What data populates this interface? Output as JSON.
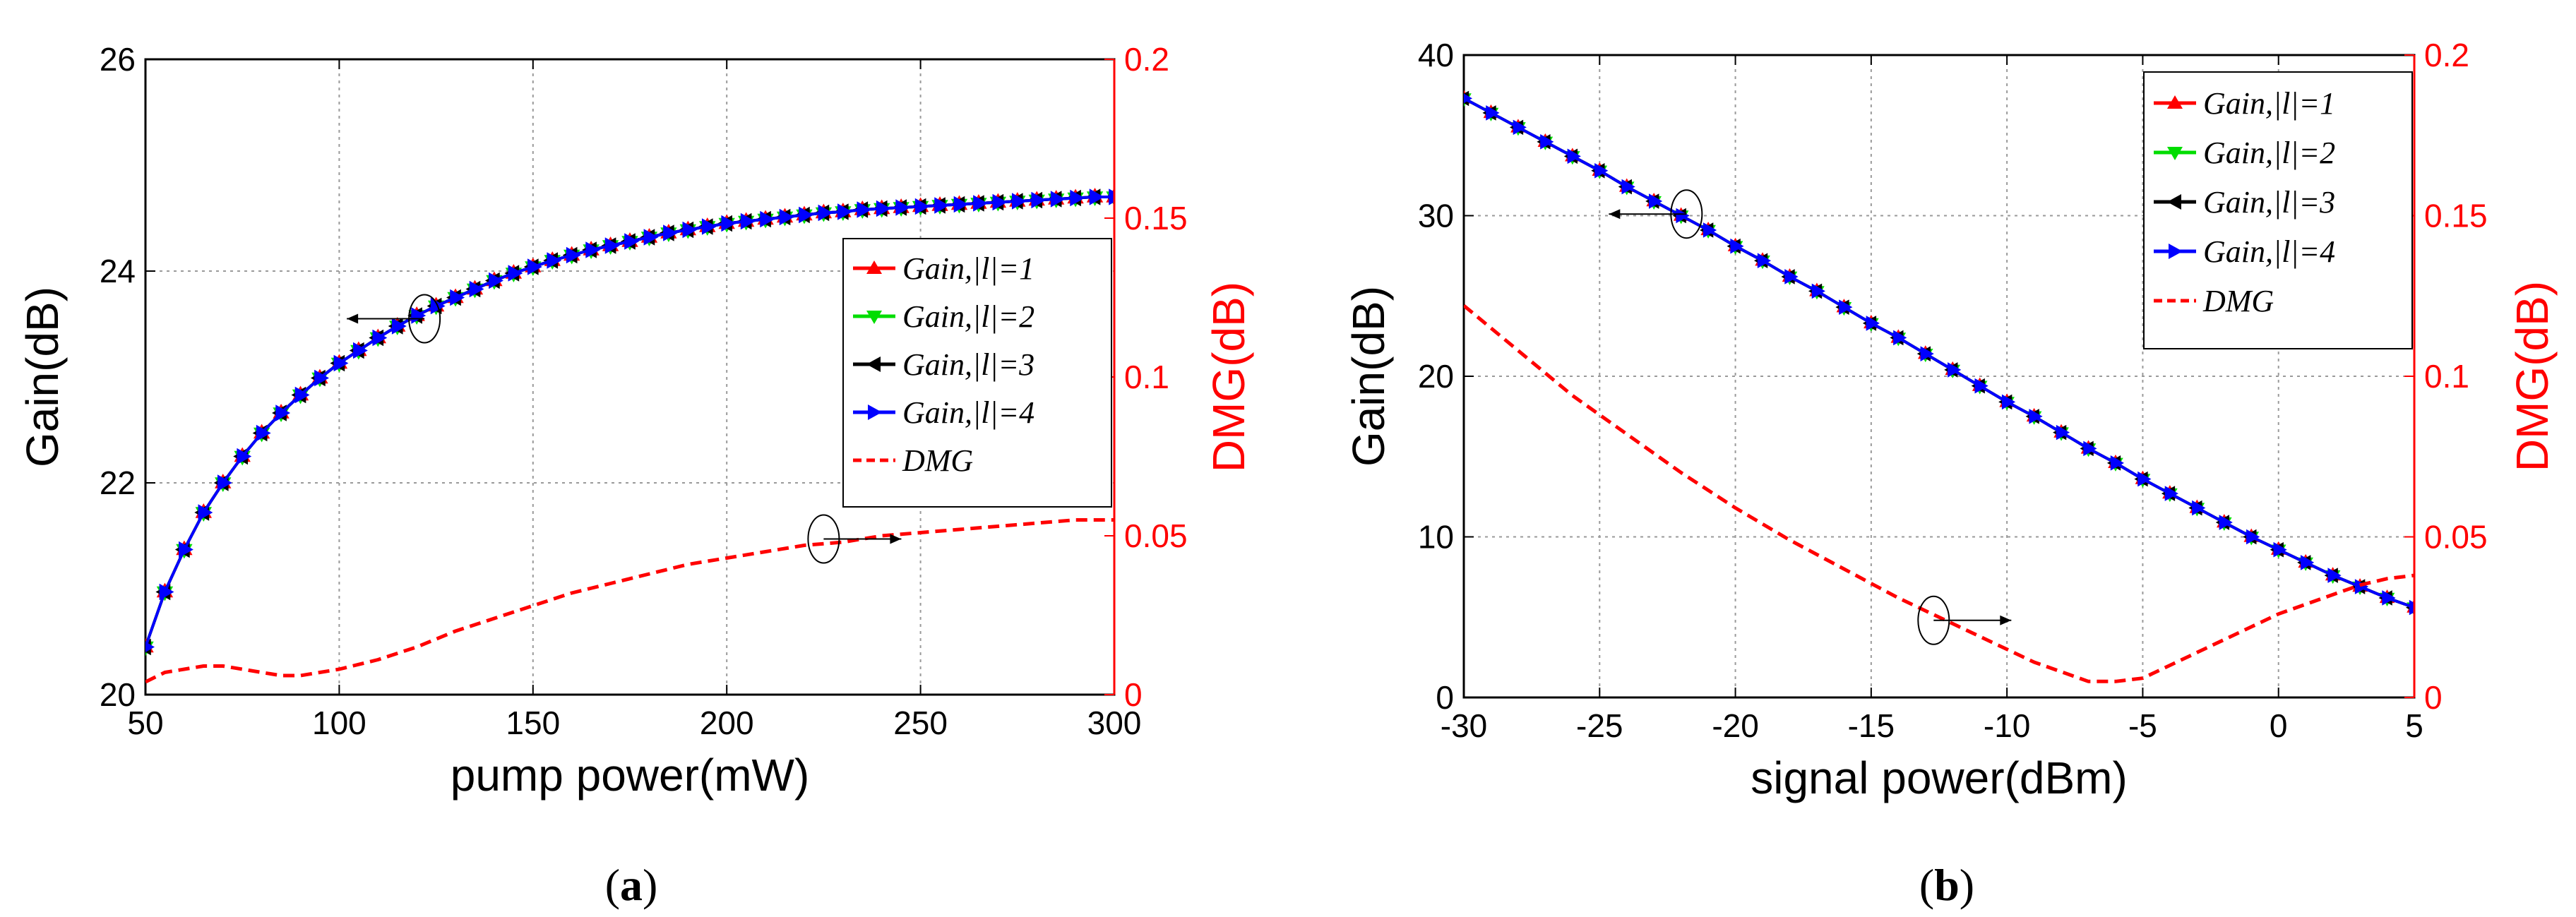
{
  "chart_data": [
    {
      "id": "a",
      "type": "line",
      "caption": {
        "open": "(",
        "letter": "a",
        "close": ")"
      },
      "xlabel": "pump power(mW)",
      "ylabel_left": "Gain(dB)",
      "ylabel_right": "DMG(dB)",
      "xlim": [
        50,
        300
      ],
      "ylim_left": [
        20,
        26
      ],
      "ylim_right": [
        0,
        0.2
      ],
      "xticks": [
        50,
        100,
        150,
        200,
        250,
        300
      ],
      "yticks_left": [
        20,
        22,
        24,
        26
      ],
      "yticks_right": [
        0,
        0.05,
        0.1,
        0.15,
        0.2
      ],
      "xtick_labels": [
        "50",
        "100",
        "150",
        "200",
        "250",
        "300"
      ],
      "ytick_labels_left": [
        "20",
        "22",
        "24",
        "26"
      ],
      "ytick_labels_right": [
        "0",
        "0.05",
        "0.1",
        "0.15",
        "0.2"
      ],
      "grid": true,
      "legend_position": "right-middle",
      "gain_x": [
        50,
        55,
        60,
        65,
        70,
        75,
        80,
        85,
        90,
        95,
        100,
        105,
        110,
        115,
        120,
        125,
        130,
        135,
        140,
        145,
        150,
        155,
        160,
        165,
        170,
        175,
        180,
        185,
        190,
        195,
        200,
        205,
        210,
        215,
        220,
        225,
        230,
        235,
        240,
        245,
        250,
        255,
        260,
        265,
        270,
        275,
        280,
        285,
        290,
        295,
        300
      ],
      "series": [
        {
          "name": "Gain,|l|=1",
          "axis": "left",
          "color": "#ff0000",
          "marker": "triangle-up",
          "values": [
            20.45,
            20.97,
            21.37,
            21.72,
            22.0,
            22.25,
            22.47,
            22.66,
            22.83,
            22.99,
            23.13,
            23.25,
            23.37,
            23.48,
            23.58,
            23.67,
            23.75,
            23.83,
            23.91,
            23.98,
            24.04,
            24.1,
            24.15,
            24.2,
            24.24,
            24.28,
            24.32,
            24.36,
            24.39,
            24.42,
            24.45,
            24.47,
            24.49,
            24.51,
            24.53,
            24.55,
            24.56,
            24.58,
            24.59,
            24.6,
            24.61,
            24.62,
            24.63,
            24.64,
            24.65,
            24.66,
            24.67,
            24.68,
            24.69,
            24.7,
            24.7
          ]
        },
        {
          "name": "Gain,|l|=2",
          "axis": "left",
          "color": "#00dd00",
          "marker": "triangle-down",
          "values": [
            20.45,
            20.97,
            21.37,
            21.72,
            22.0,
            22.25,
            22.47,
            22.66,
            22.83,
            22.99,
            23.13,
            23.25,
            23.37,
            23.48,
            23.58,
            23.67,
            23.75,
            23.83,
            23.91,
            23.98,
            24.04,
            24.1,
            24.15,
            24.2,
            24.24,
            24.28,
            24.32,
            24.36,
            24.39,
            24.42,
            24.45,
            24.47,
            24.49,
            24.51,
            24.53,
            24.55,
            24.56,
            24.58,
            24.59,
            24.6,
            24.61,
            24.62,
            24.63,
            24.64,
            24.65,
            24.66,
            24.67,
            24.68,
            24.69,
            24.7,
            24.7
          ]
        },
        {
          "name": "Gain,|l|=3",
          "axis": "left",
          "color": "#000000",
          "marker": "triangle-left",
          "values": [
            20.45,
            20.97,
            21.37,
            21.72,
            22.0,
            22.25,
            22.47,
            22.66,
            22.83,
            22.99,
            23.13,
            23.25,
            23.37,
            23.48,
            23.58,
            23.67,
            23.75,
            23.83,
            23.91,
            23.98,
            24.04,
            24.1,
            24.15,
            24.2,
            24.24,
            24.28,
            24.32,
            24.36,
            24.39,
            24.42,
            24.45,
            24.47,
            24.49,
            24.51,
            24.53,
            24.55,
            24.56,
            24.58,
            24.59,
            24.6,
            24.61,
            24.62,
            24.63,
            24.64,
            24.65,
            24.66,
            24.67,
            24.68,
            24.69,
            24.7,
            24.7
          ]
        },
        {
          "name": "Gain,|l|=4",
          "axis": "left",
          "color": "#0000ff",
          "marker": "triangle-right",
          "values": [
            20.45,
            20.97,
            21.37,
            21.72,
            22.0,
            22.25,
            22.47,
            22.66,
            22.83,
            22.99,
            23.13,
            23.25,
            23.37,
            23.48,
            23.58,
            23.67,
            23.75,
            23.83,
            23.91,
            23.98,
            24.04,
            24.1,
            24.15,
            24.2,
            24.24,
            24.28,
            24.32,
            24.36,
            24.39,
            24.42,
            24.45,
            24.47,
            24.49,
            24.51,
            24.53,
            24.55,
            24.56,
            24.58,
            24.59,
            24.6,
            24.61,
            24.62,
            24.63,
            24.64,
            24.65,
            24.66,
            24.67,
            24.68,
            24.69,
            24.7,
            24.7
          ]
        },
        {
          "name": "DMG",
          "axis": "right",
          "color": "#ff0000",
          "dashed": true,
          "x": [
            50,
            55,
            60,
            65,
            70,
            75,
            80,
            85,
            90,
            95,
            100,
            110,
            120,
            130,
            140,
            150,
            160,
            170,
            180,
            190,
            200,
            210,
            220,
            230,
            240,
            250,
            260,
            270,
            280,
            290,
            300
          ],
          "values": [
            0.004,
            0.007,
            0.008,
            0.009,
            0.009,
            0.008,
            0.007,
            0.006,
            0.006,
            0.007,
            0.008,
            0.011,
            0.015,
            0.02,
            0.024,
            0.028,
            0.032,
            0.035,
            0.038,
            0.041,
            0.043,
            0.045,
            0.047,
            0.048,
            0.05,
            0.051,
            0.052,
            0.053,
            0.054,
            0.055,
            0.055
          ]
        }
      ],
      "annotations": [
        {
          "target": "Gain",
          "circle_at": [
            122,
            23.55
          ],
          "arrow_dir": "left"
        },
        {
          "target": "DMG",
          "circle_at": [
            225,
            0.049
          ],
          "arrow_dir": "right"
        }
      ]
    },
    {
      "id": "b",
      "type": "line",
      "caption": {
        "open": "(",
        "letter": "b",
        "close": ")"
      },
      "xlabel": "signal power(dBm)",
      "ylabel_left": "Gain(dB)",
      "ylabel_right": "DMG(dB)",
      "xlim": [
        -30,
        5
      ],
      "ylim_left": [
        0,
        40
      ],
      "ylim_right": [
        0,
        0.2
      ],
      "xticks": [
        -30,
        -25,
        -20,
        -15,
        -10,
        -5,
        0,
        5
      ],
      "yticks_left": [
        0,
        10,
        20,
        30,
        40
      ],
      "yticks_right": [
        0,
        0.05,
        0.1,
        0.15,
        0.2
      ],
      "xtick_labels": [
        "-30",
        "-25",
        "-20",
        "-15",
        "-10",
        "-5",
        "0",
        "5"
      ],
      "ytick_labels_left": [
        "0",
        "10",
        "20",
        "30",
        "40"
      ],
      "ytick_labels_right": [
        "0",
        "0.05",
        "0.1",
        "0.15",
        "0.2"
      ],
      "grid": true,
      "legend_position": "top-right",
      "gain_x": [
        -30,
        -29,
        -28,
        -27,
        -26,
        -25,
        -24,
        -23,
        -22,
        -21,
        -20,
        -19,
        -18,
        -17,
        -16,
        -15,
        -14,
        -13,
        -12,
        -11,
        -10,
        -9,
        -8,
        -7,
        -6,
        -5,
        -4,
        -3,
        -2,
        -1,
        0,
        1,
        2,
        3,
        4,
        5
      ],
      "series": [
        {
          "name": "Gain,|l|=1",
          "axis": "left",
          "color": "#ff0000",
          "marker": "triangle-up",
          "values": [
            37.3,
            36.4,
            35.5,
            34.6,
            33.7,
            32.8,
            31.8,
            30.9,
            30.0,
            29.1,
            28.1,
            27.2,
            26.2,
            25.3,
            24.3,
            23.3,
            22.4,
            21.4,
            20.4,
            19.4,
            18.4,
            17.5,
            16.5,
            15.5,
            14.6,
            13.6,
            12.7,
            11.8,
            10.9,
            10.0,
            9.2,
            8.4,
            7.6,
            6.9,
            6.2,
            5.6
          ]
        },
        {
          "name": "Gain,|l|=2",
          "axis": "left",
          "color": "#00dd00",
          "marker": "triangle-down",
          "values": [
            37.3,
            36.4,
            35.5,
            34.6,
            33.7,
            32.8,
            31.8,
            30.9,
            30.0,
            29.1,
            28.1,
            27.2,
            26.2,
            25.3,
            24.3,
            23.3,
            22.4,
            21.4,
            20.4,
            19.4,
            18.4,
            17.5,
            16.5,
            15.5,
            14.6,
            13.6,
            12.7,
            11.8,
            10.9,
            10.0,
            9.2,
            8.4,
            7.6,
            6.9,
            6.2,
            5.6
          ]
        },
        {
          "name": "Gain,|l|=3",
          "axis": "left",
          "color": "#000000",
          "marker": "triangle-left",
          "values": [
            37.3,
            36.4,
            35.5,
            34.6,
            33.7,
            32.8,
            31.8,
            30.9,
            30.0,
            29.1,
            28.1,
            27.2,
            26.2,
            25.3,
            24.3,
            23.3,
            22.4,
            21.4,
            20.4,
            19.4,
            18.4,
            17.5,
            16.5,
            15.5,
            14.6,
            13.6,
            12.7,
            11.8,
            10.9,
            10.0,
            9.2,
            8.4,
            7.6,
            6.9,
            6.2,
            5.6
          ]
        },
        {
          "name": "Gain,|l|=4",
          "axis": "left",
          "color": "#0000ff",
          "marker": "triangle-right",
          "values": [
            37.3,
            36.4,
            35.5,
            34.6,
            33.7,
            32.8,
            31.8,
            30.9,
            30.0,
            29.1,
            28.1,
            27.2,
            26.2,
            25.3,
            24.3,
            23.3,
            22.4,
            21.4,
            20.4,
            19.4,
            18.4,
            17.5,
            16.5,
            15.5,
            14.6,
            13.6,
            12.7,
            11.8,
            10.9,
            10.0,
            9.2,
            8.4,
            7.6,
            6.9,
            6.2,
            5.6
          ]
        },
        {
          "name": "DMG",
          "axis": "right",
          "color": "#ff0000",
          "dashed": true,
          "x": [
            -30,
            -28,
            -26,
            -24,
            -22,
            -20,
            -18,
            -16,
            -14,
            -12,
            -10,
            -9,
            -8,
            -7,
            -6,
            -5,
            -4,
            -3,
            -2,
            -1,
            0,
            1,
            2,
            3,
            4,
            5
          ],
          "values": [
            0.122,
            0.108,
            0.094,
            0.082,
            0.07,
            0.059,
            0.049,
            0.04,
            0.031,
            0.023,
            0.015,
            0.011,
            0.008,
            0.005,
            0.005,
            0.006,
            0.01,
            0.014,
            0.018,
            0.022,
            0.026,
            0.029,
            0.032,
            0.035,
            0.037,
            0.038
          ]
        }
      ],
      "annotations": [
        {
          "target": "Gain",
          "circle_at": [
            -21.8,
            30.1
          ],
          "arrow_dir": "left"
        },
        {
          "target": "DMG",
          "circle_at": [
            -12.7,
            0.024
          ],
          "arrow_dir": "right"
        }
      ]
    }
  ]
}
